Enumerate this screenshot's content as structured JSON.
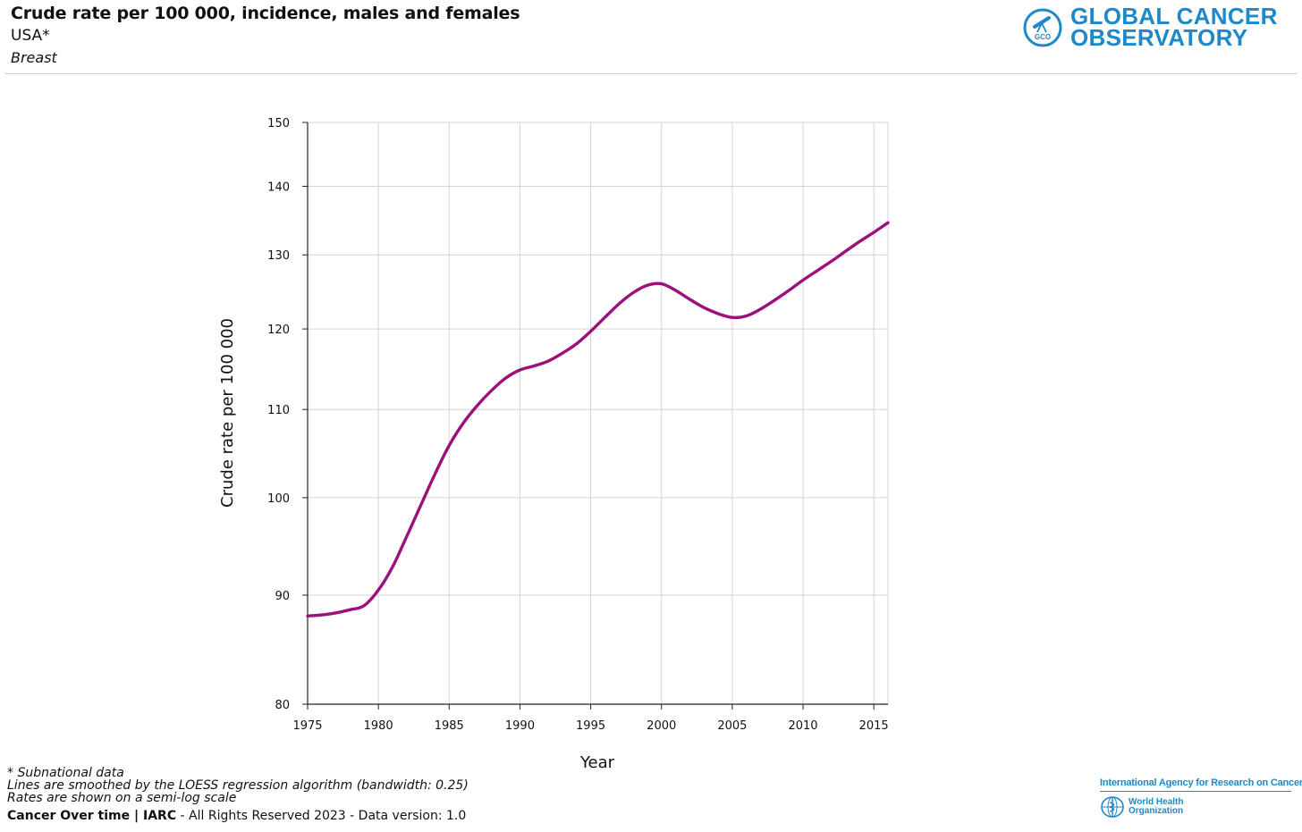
{
  "header": {
    "title": "Crude rate per 100 000, incidence, males and females",
    "population": "USA*",
    "cancer": "Breast"
  },
  "logo": {
    "line1": "GLOBAL CANCER",
    "line2": "OBSERVATORY",
    "badge": "GCO",
    "color": "#1e88c9"
  },
  "notes": {
    "line1": "* Subnational data",
    "line2": "Lines are smoothed by the LOESS regression algorithm (bandwidth: 0.25)",
    "line3": "Rates are shown on a semi-log scale"
  },
  "footer": {
    "brand": "Cancer Over time | IARC",
    "rest": " - All Rights Reserved 2023 - Data version: 1.0"
  },
  "partners": {
    "iarc": "International Agency for Research on Cancer",
    "who_line1": "World Health",
    "who_line2": "Organization"
  },
  "chart_data": {
    "type": "line",
    "xlabel": "Year",
    "ylabel": "Crude rate per 100 000",
    "scale": "log",
    "xlim": [
      1975,
      2016
    ],
    "ylim": [
      80,
      150
    ],
    "xticks": [
      1975,
      1980,
      1985,
      1990,
      1995,
      2000,
      2005,
      2010,
      2015
    ],
    "yticks": [
      80,
      90,
      100,
      110,
      120,
      130,
      140,
      150
    ],
    "grid": true,
    "line_color": "#9c0f7c",
    "series": [
      {
        "x": [
          1975,
          1976,
          1977,
          1978,
          1979,
          1980,
          1981,
          1982,
          1983,
          1984,
          1985,
          1986,
          1987,
          1988,
          1989,
          1990,
          1991,
          1992,
          1993,
          1994,
          1995,
          1996,
          1997,
          1998,
          1999,
          2000,
          2001,
          2002,
          2003,
          2004,
          2005,
          2006,
          2007,
          2008,
          2009,
          2010,
          2011,
          2012,
          2013,
          2014,
          2015,
          2016
        ],
        "y": [
          88.0,
          88.1,
          88.3,
          88.6,
          89.0,
          90.5,
          92.8,
          95.9,
          99.2,
          102.6,
          105.8,
          108.4,
          110.5,
          112.3,
          113.8,
          114.8,
          115.3,
          115.9,
          116.9,
          118.1,
          119.7,
          121.5,
          123.3,
          124.8,
          125.8,
          126.0,
          125.1,
          123.9,
          122.8,
          122.0,
          121.5,
          121.7,
          122.6,
          123.8,
          125.1,
          126.5,
          127.8,
          129.1,
          130.5,
          131.9,
          133.2,
          134.6
        ]
      }
    ]
  }
}
